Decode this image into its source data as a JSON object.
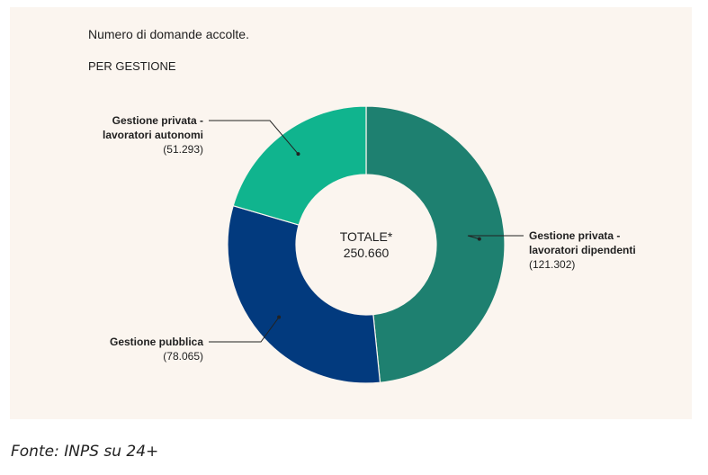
{
  "title": "Numero di domande accolte.",
  "subtitle": "PER GESTIONE",
  "source": "Fonte: INPS su 24+",
  "chart_data": {
    "type": "pie",
    "donut": true,
    "center_label": [
      "TOTALE*",
      "250.660"
    ],
    "total": 250660,
    "slices": [
      {
        "label": [
          "Gestione privata -",
          "lavoratori dipendenti"
        ],
        "value": 121302,
        "value_label": "(121.302)",
        "color": "#1e8070"
      },
      {
        "label": [
          "Gestione pubblica"
        ],
        "value": 78065,
        "value_label": "(78.065)",
        "color": "#023a7e"
      },
      {
        "label": [
          "Gestione privata -",
          "lavoratori autonomi"
        ],
        "value": 51293,
        "value_label": "(51.293)",
        "color": "#10b48e"
      }
    ]
  }
}
